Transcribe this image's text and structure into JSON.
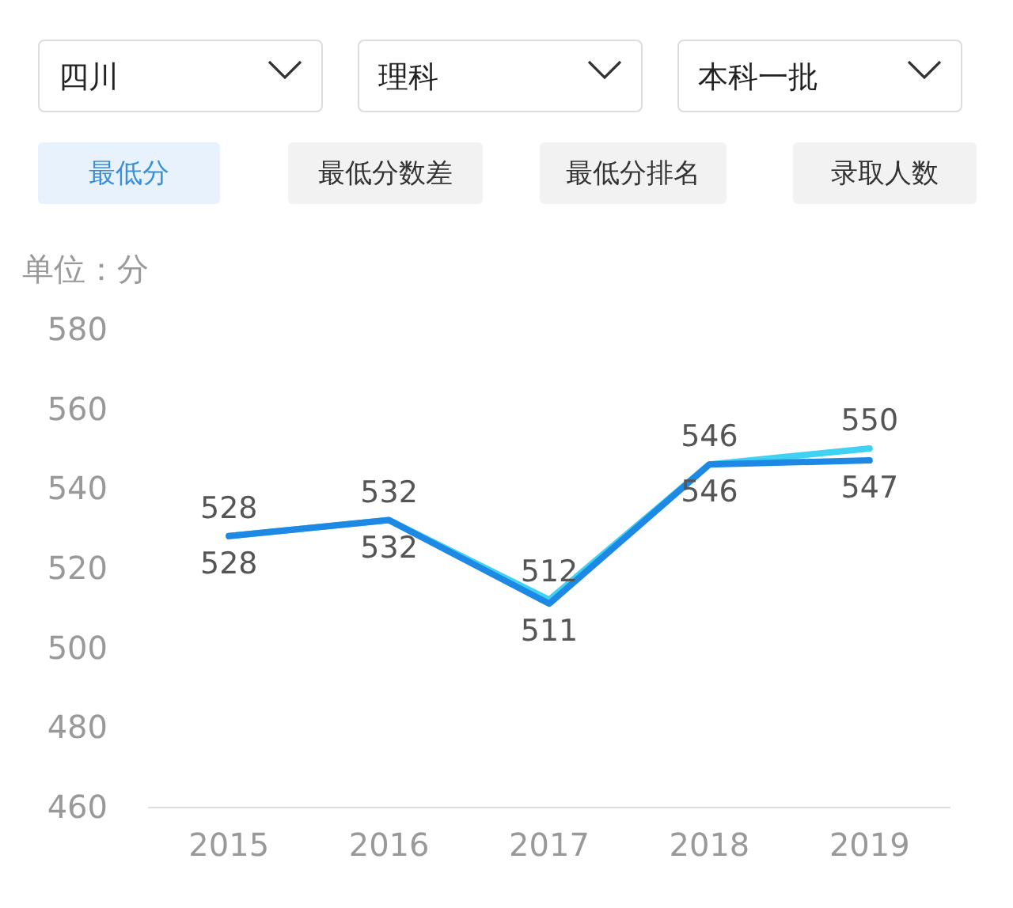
{
  "chart_data": {
    "type": "line",
    "ylabel": "单位：分",
    "annotations": [
      "四川",
      "理科",
      "本科一批",
      "最低分",
      "最低分数差",
      "最低分排名",
      "录取人数"
    ],
    "categories": [
      "2015",
      "2016",
      "2017",
      "2018",
      "2019"
    ],
    "series": [
      {
        "color": "#3fd2f2",
        "values": [
          528,
          532,
          512,
          546,
          550
        ]
      },
      {
        "color": "#1e88e5",
        "values": [
          528,
          532,
          511,
          546,
          547
        ]
      }
    ],
    "ylim": [
      460,
      580
    ],
    "yticks": [
      460,
      480,
      500,
      520,
      540,
      560,
      580
    ],
    "data_labels": true,
    "grid": false,
    "marker": "none",
    "line_style": "solid"
  }
}
